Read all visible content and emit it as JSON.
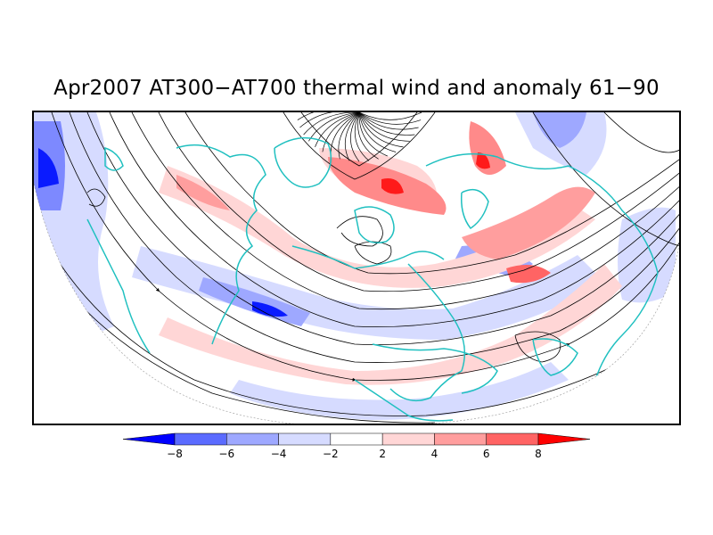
{
  "title": "Apr2007 AT300−AT700 thermal wind and anomaly 61−90",
  "colorbar": {
    "tick_labels": [
      "−8",
      "−6",
      "−4",
      "−2",
      "2",
      "4",
      "6",
      "8"
    ],
    "colors": [
      "#0000ff",
      "#5b6bff",
      "#9ea8ff",
      "#d6dbff",
      "#ffffff",
      "#ffd6d6",
      "#ff9e9e",
      "#ff6464",
      "#ff0000"
    ]
  },
  "map_colors": {
    "coast": "#20c0c0",
    "streamline": "#000000",
    "neg_strong": "#0a1bff",
    "neg_mid": "#7d89ff",
    "neg_light": "#d6dbff",
    "pos_light": "#ffd6d6",
    "pos_mid": "#ff8a8a",
    "pos_strong": "#ff1a1a"
  }
}
